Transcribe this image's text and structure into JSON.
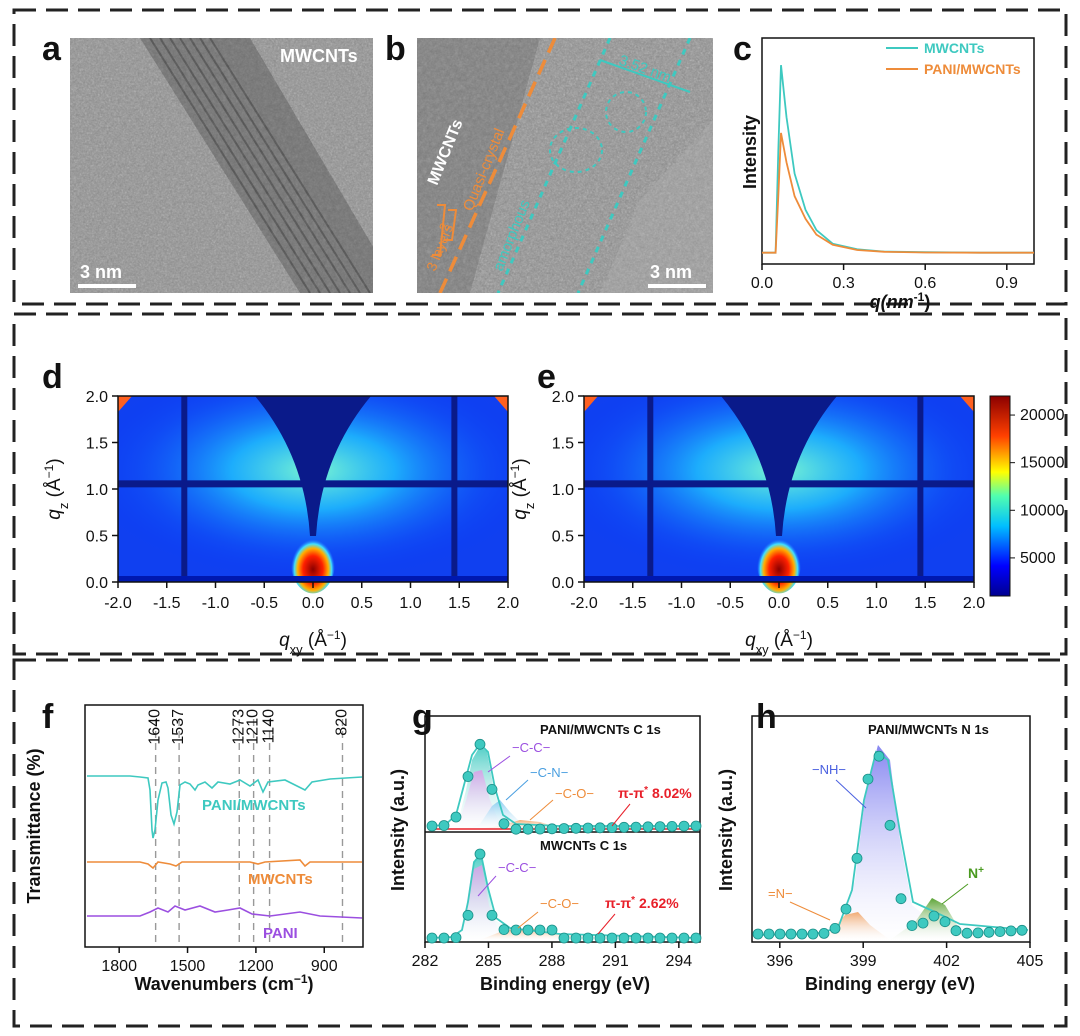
{
  "panel_labels": [
    "a",
    "b",
    "c",
    "d",
    "e",
    "f",
    "g",
    "h"
  ],
  "tem": {
    "a": {
      "label": "MWCNTs",
      "scale": "3 nm"
    },
    "b": {
      "label_mwcnts": "MWCNTs",
      "label_quasi": "Quasi-crystal",
      "label_amorphous": "amorphous",
      "label_layers": "3 layers",
      "label_bracket": "2",
      "label_width": "3.52 nm",
      "scale": "3 nm"
    }
  },
  "colors": {
    "teal": "#3ec9c0",
    "orange": "#ee8c3a",
    "purple": "#9b4fe0",
    "red": "#e8202a",
    "blue": "#4a9fe0"
  },
  "chart_data": [
    {
      "id": "c",
      "type": "line",
      "title": "",
      "xlabel_main": "q",
      "xlabel_unit": "(nm",
      "xlabel_sup": "-1",
      "xlabel_end": ")",
      "ylabel": "Intensity",
      "xlim": [
        0,
        1.0
      ],
      "xticks": [
        "0.0",
        "0.3",
        "0.6",
        "0.9"
      ],
      "xtick_values": [
        0.0,
        0.3,
        0.6,
        0.9
      ],
      "legend_position": "top-right",
      "series": [
        {
          "name": "MWCNTs",
          "color": "#3ec9c0",
          "x": [
            0,
            0.05,
            0.06,
            0.07,
            0.09,
            0.12,
            0.16,
            0.2,
            0.26,
            0.35,
            0.45,
            0.6,
            0.8,
            1.0
          ],
          "y": [
            0.05,
            0.05,
            0.5,
            0.88,
            0.65,
            0.4,
            0.24,
            0.15,
            0.09,
            0.065,
            0.055,
            0.052,
            0.05,
            0.05
          ]
        },
        {
          "name": "PANI/MWCNTs",
          "color": "#ee8c3a",
          "x": [
            0,
            0.05,
            0.06,
            0.07,
            0.09,
            0.12,
            0.16,
            0.2,
            0.26,
            0.35,
            0.45,
            0.6,
            0.8,
            1.0
          ],
          "y": [
            0.05,
            0.05,
            0.3,
            0.58,
            0.45,
            0.3,
            0.2,
            0.13,
            0.085,
            0.062,
            0.054,
            0.051,
            0.05,
            0.05
          ]
        }
      ]
    },
    {
      "id": "d",
      "type": "heatmap",
      "xlabel": "q",
      "xlabel_sub": "xy",
      "xlabel_unit": " (Å",
      "xlabel_sup": "−1",
      "xlabel_end": ")",
      "ylabel": "q",
      "ylabel_sub": "z",
      "ylabel_unit": " (Å",
      "ylabel_sup": "−1",
      "ylabel_end": ")",
      "xlim": [
        -2.0,
        2.0
      ],
      "ylim": [
        0.0,
        2.0
      ],
      "xticks": [
        "-2.0",
        "-1.5",
        "-1.0",
        "-0.5",
        "0.0",
        "0.5",
        "1.0",
        "1.5",
        "2.0"
      ],
      "yticks": [
        "0.0",
        "0.5",
        "1.0",
        "1.5",
        "2.0"
      ]
    },
    {
      "id": "e",
      "type": "heatmap",
      "xlabel": "q",
      "xlabel_sub": "xy",
      "xlabel_unit": " (Å",
      "xlabel_sup": "−1",
      "xlabel_end": ")",
      "ylabel": "q",
      "ylabel_sub": "z",
      "ylabel_unit": " (Å",
      "ylabel_sup": "−1",
      "ylabel_end": ")",
      "xlim": [
        -2.0,
        2.0
      ],
      "ylim": [
        0.0,
        2.0
      ],
      "xticks": [
        "-2.0",
        "-1.5",
        "-1.0",
        "-0.5",
        "0.0",
        "0.5",
        "1.0",
        "1.5",
        "2.0"
      ],
      "yticks": [
        "0.0",
        "0.5",
        "1.0",
        "1.5",
        "2.0"
      ],
      "colorbar_ticks": [
        "20000",
        "15000",
        "10000",
        "5000"
      ],
      "colorbar_values": [
        20000,
        15000,
        10000,
        5000
      ],
      "colorbar_range": [
        1000,
        22000
      ]
    },
    {
      "id": "f",
      "type": "line",
      "xlabel": "Wavenumbers (cm",
      "xlabel_sup": "−1",
      "xlabel_end": ")",
      "ylabel": "Transmittance (%)",
      "xlim": [
        1950,
        730
      ],
      "xticks": [
        "1800",
        "1500",
        "1200",
        "900"
      ],
      "xtick_values": [
        1800,
        1500,
        1200,
        900
      ],
      "peaks": [
        "1640",
        "1537",
        "1273",
        "1210",
        "1140",
        "820"
      ],
      "peak_values": [
        1640,
        1537,
        1273,
        1210,
        1140,
        820
      ],
      "series": [
        {
          "name": "PANI/MWCNTs",
          "color": "#3ec9c0"
        },
        {
          "name": "MWCNTs",
          "color": "#ee8c3a"
        },
        {
          "name": "PANI",
          "color": "#9b4fe0"
        }
      ]
    },
    {
      "id": "g",
      "type": "scatter",
      "xlabel": "Binding energy (eV)",
      "ylabel": "Intensity (a.u.)",
      "xlim": [
        282,
        295
      ],
      "xticks": [
        "282",
        "285",
        "288",
        "291",
        "294"
      ],
      "xtick_values": [
        282,
        285,
        288,
        291,
        294
      ],
      "top_title": "PANI/MWCNTs  C 1s",
      "bottom_title": "MWCNTs C 1s",
      "top_components": [
        "−C-C−",
        "−C-N−",
        "−C-O−"
      ],
      "top_pi_label": "π-π",
      "top_pi_sup": "*",
      "top_pi_value": "8.02%",
      "bottom_components": [
        "−C-C−",
        "−C-O−"
      ],
      "bottom_pi_label": "π-π",
      "bottom_pi_sup": "*",
      "bottom_pi_value": "2.62%"
    },
    {
      "id": "h",
      "type": "scatter",
      "xlabel": "Binding energy (eV)",
      "ylabel": "Intensity (a.u.)",
      "xlim": [
        395,
        405
      ],
      "xticks": [
        "396",
        "399",
        "402",
        "405"
      ],
      "xtick_values": [
        396,
        399,
        402,
        405
      ],
      "title": "PANI/MWCNTs  N 1s",
      "components": [
        "−NH−",
        "=N−",
        "N"
      ],
      "component_sup": "+"
    }
  ]
}
